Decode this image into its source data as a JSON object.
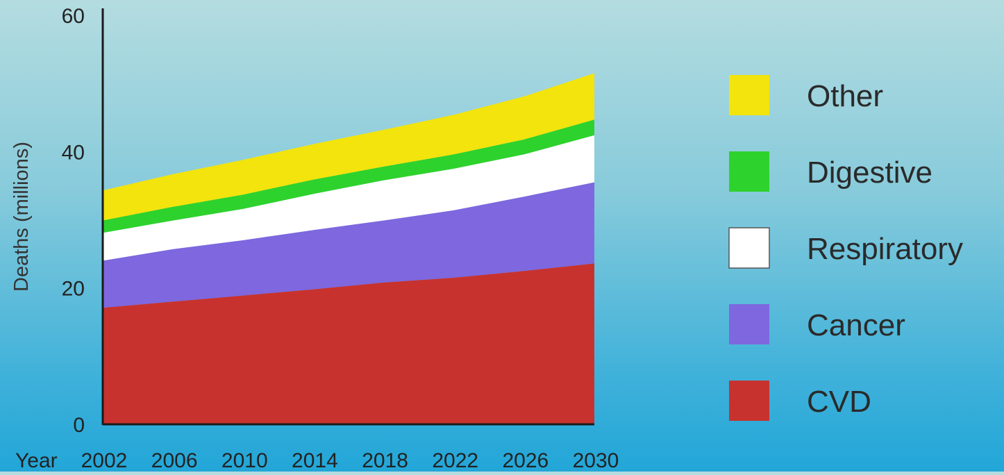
{
  "chart_data": {
    "type": "area",
    "stacked": true,
    "ylabel": "Deaths (millions)",
    "xlabel": "Year",
    "ylim": [
      0,
      60
    ],
    "yticks": [
      0,
      20,
      40,
      60
    ],
    "x": [
      2002,
      2006,
      2010,
      2014,
      2018,
      2022,
      2026,
      2030
    ],
    "xtick_labels": [
      "2002",
      "2006",
      "2010",
      "2014",
      "2018",
      "2022",
      "2026",
      "2030"
    ],
    "legend_position": "right",
    "series": [
      {
        "name": "CVD",
        "color": "#c8322e",
        "values": [
          17.1,
          18.0,
          18.9,
          19.8,
          20.8,
          21.5,
          22.5,
          23.6
        ]
      },
      {
        "name": "Cancer",
        "color": "#7e67df",
        "values": [
          6.9,
          7.7,
          8.1,
          8.7,
          9.1,
          9.9,
          10.9,
          11.9
        ]
      },
      {
        "name": "Respiratory",
        "color": "#ffffff",
        "values": [
          4.1,
          4.2,
          4.6,
          5.3,
          5.9,
          6.1,
          6.2,
          6.9
        ]
      },
      {
        "name": "Digestive",
        "color": "#2ed22c",
        "values": [
          1.8,
          2.0,
          2.1,
          2.1,
          2.0,
          2.1,
          2.2,
          2.3
        ]
      },
      {
        "name": "Other",
        "color": "#f2e40c",
        "values": [
          4.4,
          4.8,
          5.1,
          5.2,
          5.4,
          5.8,
          6.3,
          6.8
        ]
      }
    ]
  }
}
